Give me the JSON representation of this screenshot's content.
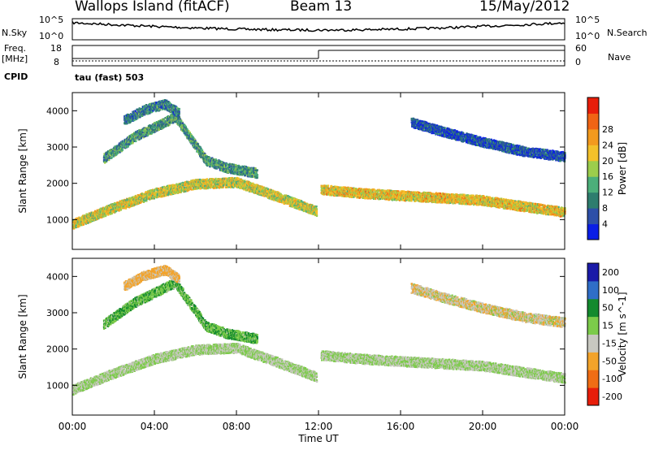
{
  "header": {
    "station": "Wallops Island (fitACF)",
    "beam": "Beam 13",
    "date": "15/May/2012"
  },
  "summary_panels": {
    "nsky_label": "N.Sky",
    "nsearch_label": "N.Search",
    "nsky_ticks": [
      "10^5",
      "10^0"
    ],
    "nsearch_ticks": [
      "10^5",
      "10^0"
    ],
    "freq_label": "Freq.",
    "freq_unit": "[MHz]",
    "freq_ticks": [
      "18",
      "8"
    ],
    "nave_label": "Nave",
    "nave_ticks": [
      "60",
      "0"
    ],
    "cpid_label": "CPID",
    "cpid_value": "tau (fast) 503"
  },
  "chart_data": [
    {
      "type": "heatmap",
      "title": "Power",
      "ylabel": "Slant Range [km]",
      "xlabel": "",
      "x_ticks": [
        "00:00",
        "04:00",
        "08:00",
        "12:00",
        "16:00",
        "20:00",
        "00:00"
      ],
      "y_ticks": [
        1000,
        2000,
        3000,
        4000
      ],
      "xlim": [
        0,
        24
      ],
      "ylim": [
        180,
        4500
      ],
      "colorbar": {
        "label": "Power [dB]",
        "ticks": [
          4,
          8,
          12,
          16,
          20,
          24,
          28
        ],
        "colors": [
          "#0a1ee6",
          "#2d4fa8",
          "#2e7d6e",
          "#4caf7a",
          "#9ccd4c",
          "#f3c12a",
          "#f39a1e",
          "#f06414",
          "#e81e0a"
        ]
      },
      "bands": [
        {
          "name": "main",
          "x": [
            0,
            2,
            4,
            6,
            8,
            10,
            11.9
          ],
          "y": [
            900,
            1350,
            1750,
            2000,
            2050,
            1650,
            1250
          ],
          "value": 20
        },
        {
          "name": "upper",
          "x": [
            1.5,
            3,
            5,
            6.5,
            7.5,
            9
          ],
          "y": [
            2700,
            3300,
            3850,
            2650,
            2450,
            2300
          ],
          "value": 12
        },
        {
          "name": "top",
          "x": [
            2.5,
            3.5,
            4.5,
            5.2
          ],
          "y": [
            3750,
            4050,
            4200,
            3950
          ],
          "value": 10
        },
        {
          "name": "evening",
          "x": [
            12.1,
            14,
            16,
            18,
            20,
            22,
            24
          ],
          "y": [
            1850,
            1750,
            1680,
            1620,
            1550,
            1380,
            1220
          ],
          "value": 22
        },
        {
          "name": "evening-upper",
          "x": [
            16.5,
            18,
            20,
            22,
            24
          ],
          "y": [
            3700,
            3450,
            3150,
            2900,
            2750
          ],
          "value": 6
        }
      ]
    },
    {
      "type": "heatmap",
      "title": "Velocity",
      "ylabel": "Slant Range [km]",
      "xlabel": "Time UT",
      "x_ticks": [
        "00:00",
        "04:00",
        "08:00",
        "12:00",
        "16:00",
        "20:00",
        "00:00"
      ],
      "y_ticks": [
        1000,
        2000,
        3000,
        4000
      ],
      "xlim": [
        0,
        24
      ],
      "ylim": [
        180,
        4500
      ],
      "colorbar": {
        "label": "Velocity [m s^-1]",
        "ticks": [
          200,
          100,
          50,
          15,
          -15,
          -50,
          -100,
          -200
        ],
        "colors": [
          "#1a1aa8",
          "#2f6ec8",
          "#138a2e",
          "#7ccb4a",
          "#c8c8c0",
          "#f3a32a",
          "#f06d14",
          "#e81e0a"
        ]
      },
      "bands": [
        {
          "name": "main",
          "x": [
            0,
            2,
            4,
            6,
            8,
            10,
            11.9
          ],
          "y": [
            900,
            1350,
            1750,
            2000,
            2050,
            1650,
            1250
          ],
          "value": 0
        },
        {
          "name": "upper",
          "x": [
            1.5,
            3,
            5,
            6.5,
            7.5,
            9
          ],
          "y": [
            2700,
            3300,
            3850,
            2650,
            2450,
            2300
          ],
          "value": 25
        },
        {
          "name": "top",
          "x": [
            2.5,
            3.5,
            4.5,
            5.2
          ],
          "y": [
            3750,
            4050,
            4200,
            3950
          ],
          "value": -40
        },
        {
          "name": "evening",
          "x": [
            12.1,
            14,
            16,
            18,
            20,
            22,
            24
          ],
          "y": [
            1850,
            1750,
            1680,
            1620,
            1550,
            1380,
            1220
          ],
          "value": 0
        },
        {
          "name": "evening-upper",
          "x": [
            16.5,
            18,
            20,
            22,
            24
          ],
          "y": [
            3700,
            3450,
            3150,
            2900,
            2750
          ],
          "value": -20
        }
      ]
    }
  ]
}
